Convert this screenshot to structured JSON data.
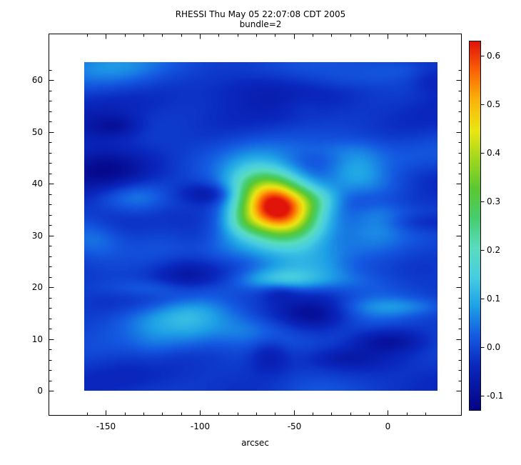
{
  "chart_data": {
    "type": "heatmap",
    "title": "RHESSI Thu May 05 22:07:08 CDT 2005",
    "subtitle": "bundle=2",
    "xlabel": "arcsec",
    "ylabel": "",
    "x_ticks": [
      -150,
      -100,
      -50,
      0
    ],
    "y_ticks": [
      0,
      10,
      20,
      30,
      40,
      50,
      60
    ],
    "x_range": [
      -161.5,
      26.5
    ],
    "y_range": [
      0,
      63.5
    ],
    "grid": false,
    "colorbar": {
      "position": "right",
      "min": -0.13,
      "max": 0.63,
      "tick_labels": [
        "-0.1",
        "0.0",
        "0.1",
        "0.2",
        "0.3",
        "0.4",
        "0.5",
        "0.6"
      ]
    },
    "colormap": [
      {
        "pos": 0.0,
        "color": "#040486"
      },
      {
        "pos": 0.12,
        "color": "#0a28be"
      },
      {
        "pos": 0.2,
        "color": "#145ae1"
      },
      {
        "pos": 0.28,
        "color": "#1ea0e6"
      },
      {
        "pos": 0.36,
        "color": "#46cde1"
      },
      {
        "pos": 0.44,
        "color": "#5adcbe"
      },
      {
        "pos": 0.52,
        "color": "#46cd6e"
      },
      {
        "pos": 0.6,
        "color": "#5ac832"
      },
      {
        "pos": 0.68,
        "color": "#a0d71e"
      },
      {
        "pos": 0.76,
        "color": "#ebe614"
      },
      {
        "pos": 0.84,
        "color": "#fab40a"
      },
      {
        "pos": 0.92,
        "color": "#fa6405"
      },
      {
        "pos": 1.0,
        "color": "#e1140a"
      }
    ],
    "source": {
      "x_arcsec": -60,
      "y_arcsec": 36,
      "peak_value": 0.63
    },
    "background_noise": {
      "mean": 0.0,
      "amplitude": 0.08,
      "pattern": "horizontal wavy ripples"
    }
  }
}
